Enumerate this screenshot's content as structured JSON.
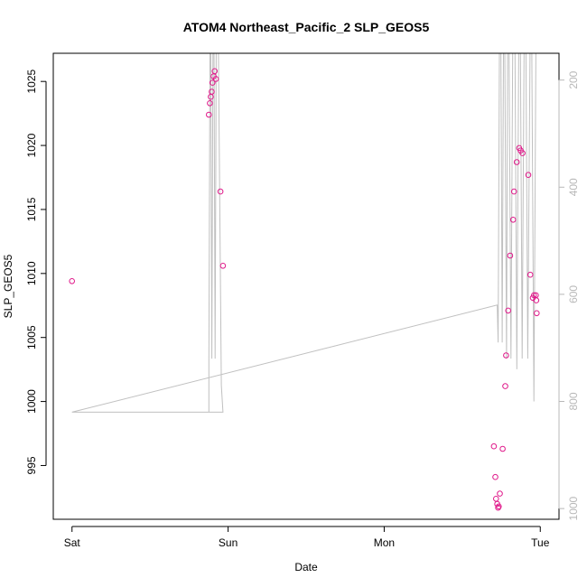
{
  "chart_data": {
    "type": "scatter",
    "title": "ATOM4 Northeast_Pacific_2 SLP_GEOS5",
    "xlabel": "Date",
    "ylabel": "SLP_GEOS5",
    "x_ticks": [
      {
        "value": 0.0,
        "label": "Sat"
      },
      {
        "value": 1.0,
        "label": "Sun"
      },
      {
        "value": 2.0,
        "label": "Mon"
      },
      {
        "value": 3.0,
        "label": "Tue"
      }
    ],
    "xlim": [
      -0.12,
      3.12
    ],
    "ylim": [
      990.8,
      1027.2
    ],
    "y_ticks": [
      995,
      1000,
      1005,
      1010,
      1015,
      1020,
      1025
    ],
    "y2_ticks": [
      200,
      400,
      600,
      800,
      1000
    ],
    "y2lim": [
      1020,
      150
    ],
    "colors": {
      "points": "#e0198a",
      "line": "#c0c0c0",
      "axis": "#000000",
      "axis_right": "#b8b8b8"
    },
    "grid": false,
    "series": [
      {
        "kind": "points",
        "x": [
          0.0,
          0.877,
          0.883,
          0.889,
          0.895,
          0.9,
          0.907,
          0.914,
          0.922,
          0.951,
          0.967,
          2.703,
          2.712,
          2.717,
          2.724,
          2.73,
          2.734,
          2.741,
          2.759,
          2.776,
          2.781,
          2.794,
          2.807,
          2.826,
          2.832,
          2.849,
          2.865,
          2.874,
          2.886,
          2.923,
          2.936,
          2.952,
          2.96,
          2.972,
          2.974,
          2.977
        ],
        "y": [
          1009.4,
          1022.4,
          1023.3,
          1023.8,
          1024.2,
          1024.9,
          1025.4,
          1025.8,
          1025.2,
          1016.4,
          1010.6,
          996.5,
          994.1,
          992.4,
          992.0,
          991.7,
          991.8,
          992.8,
          996.3,
          1001.2,
          1003.6,
          1007.1,
          1011.4,
          1014.2,
          1016.4,
          1018.7,
          1019.8,
          1019.6,
          1019.4,
          1017.7,
          1009.9,
          1008.1,
          1008.3,
          1008.3,
          1007.9,
          1006.9
        ]
      },
      {
        "kind": "line",
        "axis": "right",
        "x": [
          0.0,
          0.877,
          0.877,
          0.884,
          0.889,
          0.896,
          0.903,
          0.91,
          0.917,
          0.924,
          0.931,
          0.938,
          0.957,
          0.967,
          0.0,
          2.724,
          2.73,
          2.738,
          2.748,
          2.756,
          2.764,
          2.773,
          2.784,
          2.791,
          2.8,
          2.812,
          2.823,
          2.838,
          2.85,
          2.862,
          2.873,
          2.884,
          2.896,
          2.908,
          2.92,
          2.934,
          2.946,
          2.959,
          2.972,
          2.984
        ],
        "y": [
          820,
          820,
          720,
          150,
          150,
          720,
          150,
          150,
          720,
          150,
          150,
          150,
          770,
          820,
          820,
          620,
          690,
          150,
          150,
          690,
          150,
          150,
          720,
          150,
          150,
          720,
          150,
          150,
          740,
          150,
          150,
          720,
          150,
          150,
          720,
          150,
          150,
          800,
          150,
          150
        ]
      }
    ]
  }
}
